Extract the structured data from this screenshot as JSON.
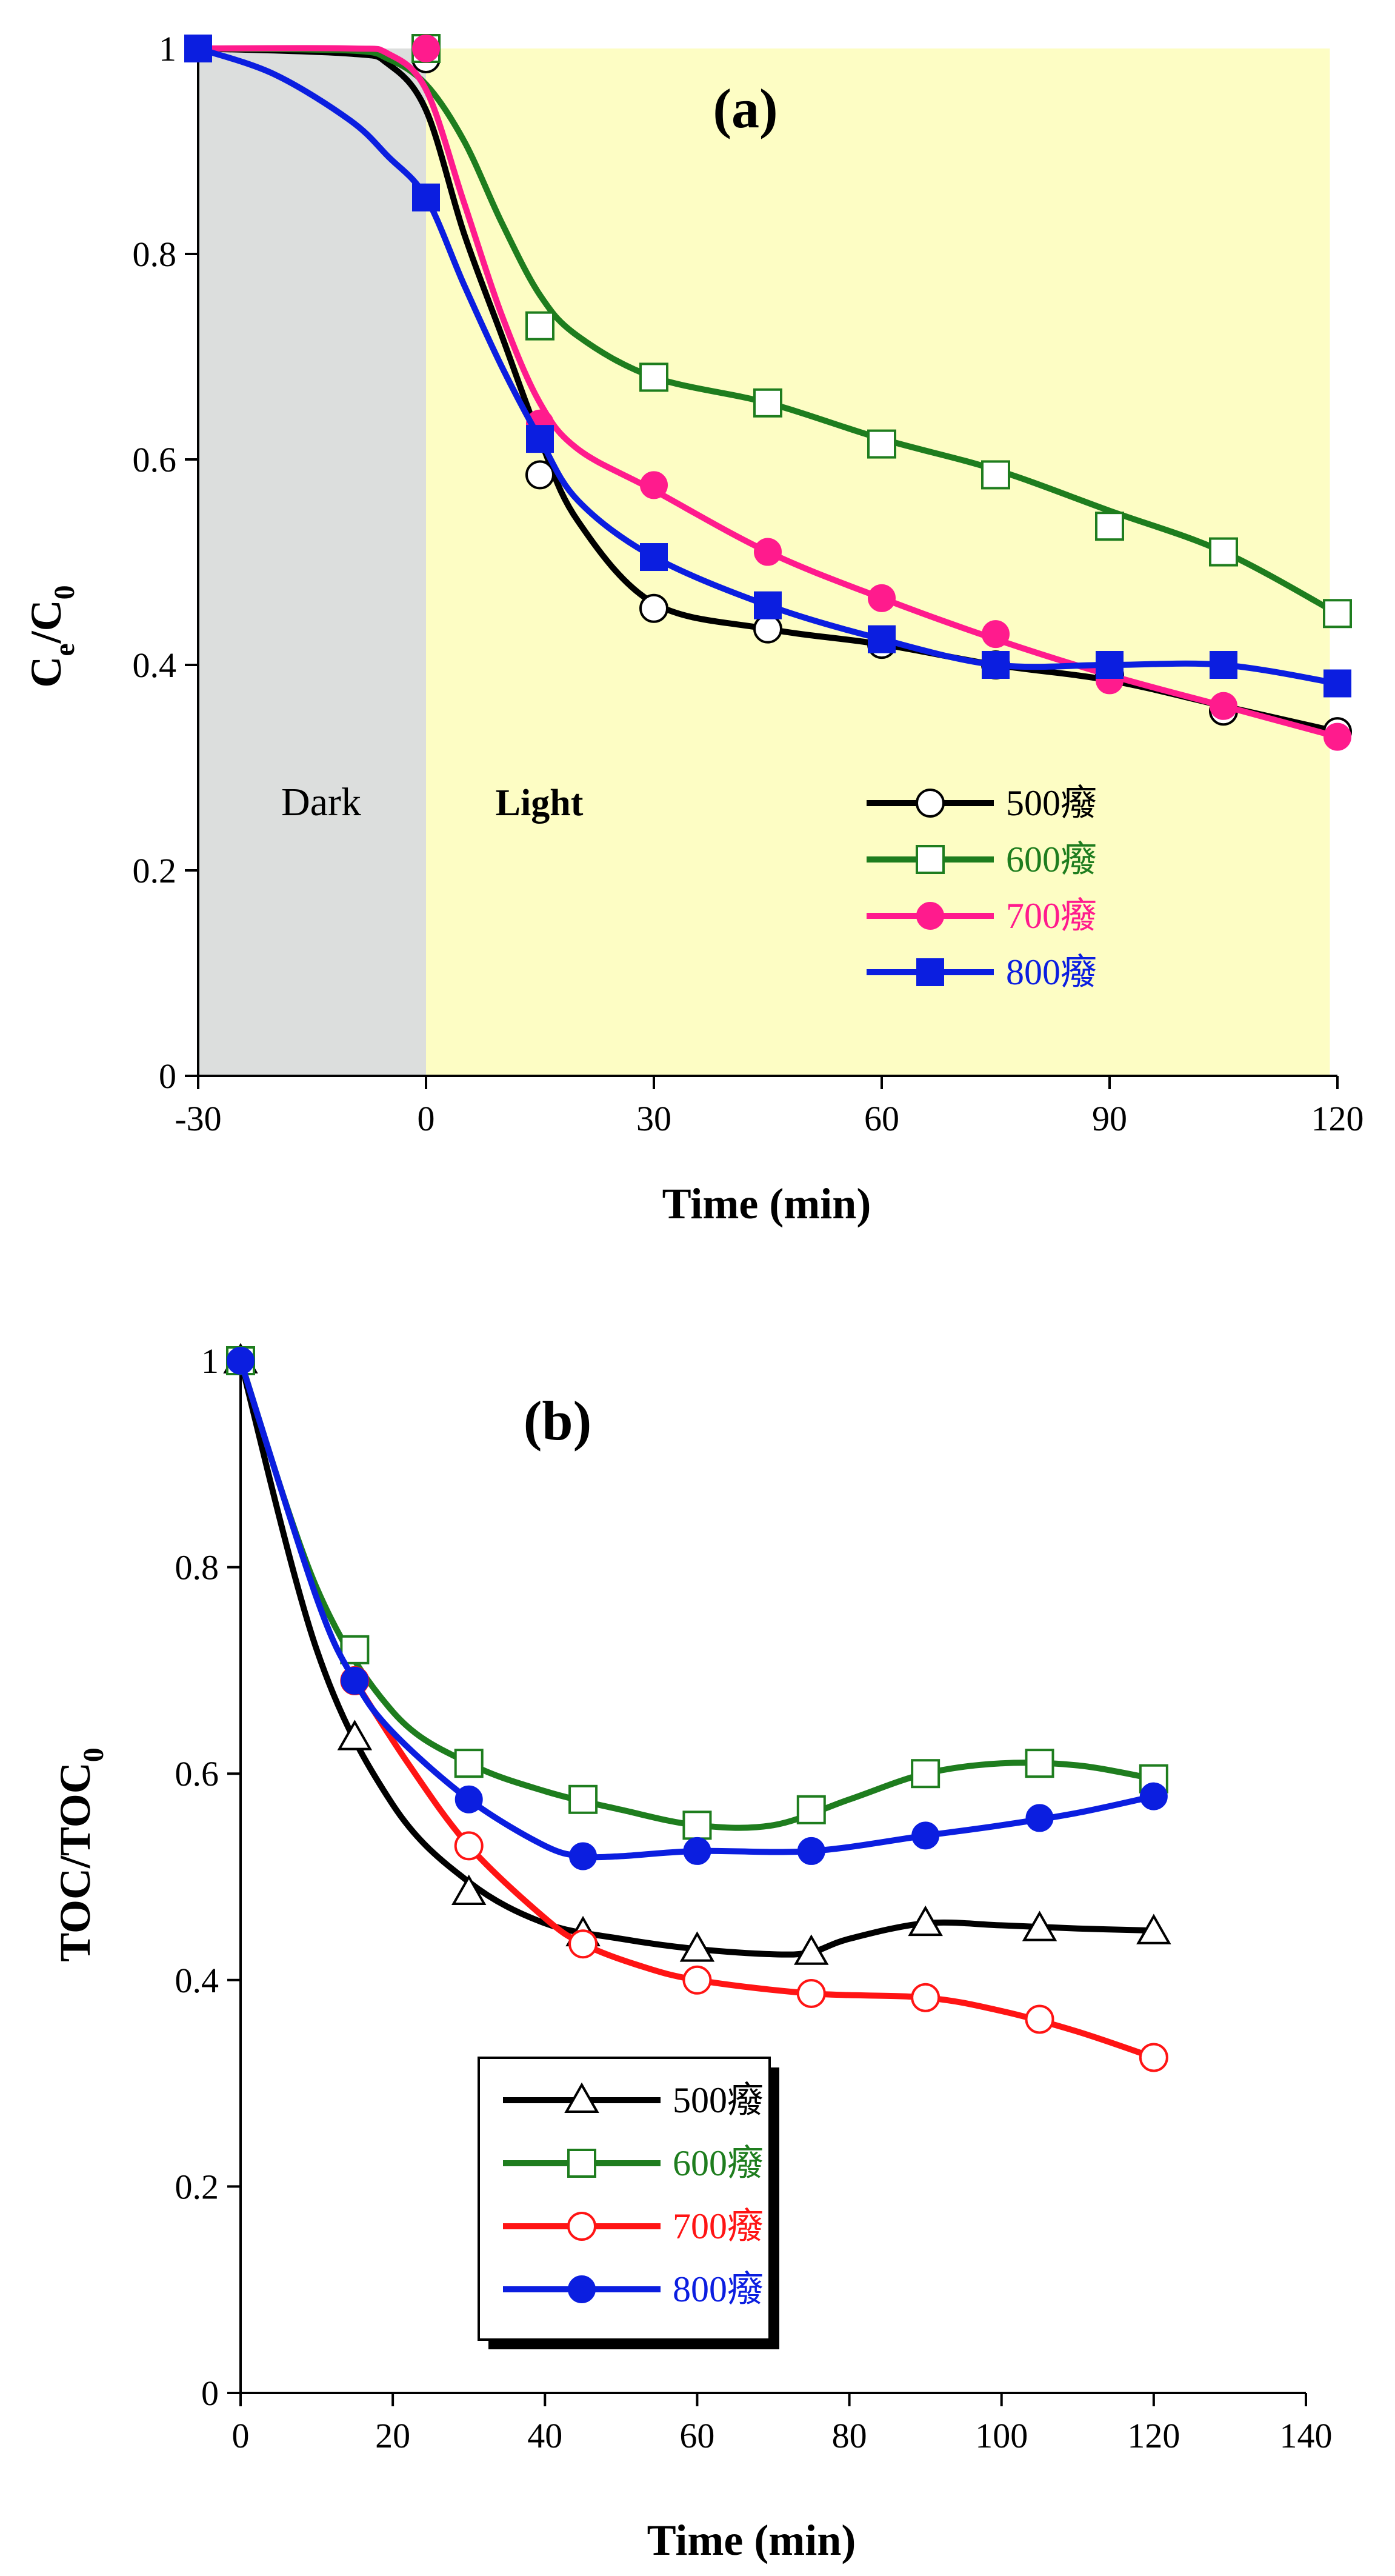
{
  "chart_data": [
    {
      "type": "line",
      "panel_label": "(a)",
      "xlabel": "Time (min)",
      "ylabel": {
        "base": "C",
        "sub1": "e",
        "mid": "/C",
        "sub2": "0"
      },
      "xlim": [
        -30,
        120
      ],
      "ylim": [
        0,
        1
      ],
      "xticks": [
        -30,
        0,
        30,
        60,
        90,
        120
      ],
      "yticks": [
        0,
        0.2,
        0.4,
        0.6,
        0.8,
        1
      ],
      "regions": [
        {
          "label": "Dark",
          "from": -30,
          "to": 0,
          "color": "#dcdedd"
        },
        {
          "label": "Light",
          "from": 0,
          "to": 119,
          "color": "#fdfdc4"
        }
      ],
      "legend_position": "lower-right",
      "series": [
        {
          "name": "500癈",
          "color": "#000000",
          "marker": "circle-open",
          "x": [
            0,
            15,
            30,
            45,
            60,
            75,
            90,
            105,
            120
          ],
          "y": [
            0.99,
            0.585,
            0.455,
            0.435,
            0.42,
            0.4,
            0.39,
            0.355,
            0.335
          ],
          "curve_x": [
            -30,
            -10,
            -5,
            0,
            5,
            10,
            15,
            20,
            30,
            45,
            60,
            75,
            90,
            105,
            120
          ],
          "curve_y": [
            1,
            0.995,
            0.985,
            0.94,
            0.82,
            0.72,
            0.62,
            0.54,
            0.46,
            0.435,
            0.42,
            0.4,
            0.385,
            0.36,
            0.335
          ]
        },
        {
          "name": "600癈",
          "color": "#1e7d1e",
          "marker": "square-open",
          "x": [
            0,
            15,
            30,
            45,
            60,
            75,
            90,
            105,
            120
          ],
          "y": [
            1,
            0.73,
            0.68,
            0.655,
            0.615,
            0.585,
            0.535,
            0.51,
            0.45
          ],
          "curve_x": [
            -30,
            -10,
            -5,
            0,
            5,
            10,
            15,
            20,
            30,
            45,
            60,
            75,
            90,
            105,
            120
          ],
          "curve_y": [
            1,
            0.998,
            0.99,
            0.965,
            0.91,
            0.83,
            0.76,
            0.72,
            0.68,
            0.655,
            0.62,
            0.59,
            0.55,
            0.51,
            0.45
          ]
        },
        {
          "name": "700癈",
          "color": "#ff1b8d",
          "marker": "circle-filled",
          "x": [
            0,
            15,
            30,
            45,
            60,
            75,
            90,
            105,
            120
          ],
          "y": [
            1,
            0.635,
            0.575,
            0.51,
            0.465,
            0.43,
            0.385,
            0.36,
            0.33
          ],
          "curve_x": [
            -30,
            -10,
            -5,
            0,
            5,
            10,
            15,
            20,
            30,
            45,
            60,
            75,
            90,
            105,
            120
          ],
          "curve_y": [
            1,
            1,
            0.995,
            0.96,
            0.85,
            0.74,
            0.655,
            0.61,
            0.57,
            0.51,
            0.465,
            0.425,
            0.39,
            0.36,
            0.33
          ]
        },
        {
          "name": "800癈",
          "color": "#0b1ee0",
          "marker": "square-filled",
          "x": [
            -30,
            0,
            15,
            30,
            45,
            60,
            75,
            90,
            105,
            120
          ],
          "y": [
            1,
            0.855,
            0.62,
            0.505,
            0.458,
            0.425,
            0.4,
            0.4,
            0.4,
            0.382
          ],
          "curve_x": [
            -30,
            -20,
            -10,
            -5,
            0,
            5,
            10,
            15,
            20,
            30,
            45,
            60,
            75,
            90,
            105,
            120
          ],
          "curve_y": [
            1,
            0.975,
            0.93,
            0.895,
            0.855,
            0.77,
            0.69,
            0.62,
            0.56,
            0.505,
            0.458,
            0.425,
            0.4,
            0.4,
            0.4,
            0.382
          ]
        }
      ]
    },
    {
      "type": "line",
      "panel_label": "(b)",
      "xlabel": "Time (min)",
      "ylabel": {
        "base": "TOC/TOC",
        "sub2": "0"
      },
      "xlim": [
        0,
        140
      ],
      "ylim": [
        0,
        1
      ],
      "xticks": [
        0,
        20,
        40,
        60,
        80,
        100,
        120,
        140
      ],
      "yticks": [
        0,
        0.2,
        0.4,
        0.6,
        0.8,
        1
      ],
      "legend_position": "lower-left",
      "series": [
        {
          "name": "500癈",
          "color": "#000000",
          "marker": "triangle-open",
          "x": [
            0,
            15,
            30,
            45,
            60,
            75,
            90,
            105,
            120
          ],
          "y": [
            1,
            0.635,
            0.485,
            0.445,
            0.43,
            0.427,
            0.455,
            0.45,
            0.447
          ],
          "curve_x": [
            0,
            10,
            20,
            30,
            40,
            50,
            60,
            70,
            75,
            80,
            90,
            100,
            110,
            120
          ],
          "curve_y": [
            1,
            0.72,
            0.57,
            0.495,
            0.455,
            0.44,
            0.43,
            0.425,
            0.427,
            0.44,
            0.455,
            0.453,
            0.45,
            0.448
          ]
        },
        {
          "name": "600癈",
          "color": "#1e7d1e",
          "marker": "square-open",
          "x": [
            0,
            15,
            30,
            45,
            60,
            75,
            90,
            105,
            120
          ],
          "y": [
            1,
            0.72,
            0.61,
            0.575,
            0.55,
            0.565,
            0.6,
            0.61,
            0.595
          ],
          "curve_x": [
            0,
            10,
            20,
            30,
            40,
            50,
            60,
            70,
            80,
            90,
            100,
            110,
            120
          ],
          "curve_y": [
            1,
            0.78,
            0.66,
            0.61,
            0.583,
            0.565,
            0.55,
            0.55,
            0.575,
            0.6,
            0.61,
            0.608,
            0.595
          ]
        },
        {
          "name": "700癈",
          "color": "#ff1414",
          "marker": "circle-open",
          "x": [
            15,
            30,
            45,
            60,
            75,
            90,
            105,
            120
          ],
          "y": [
            0.69,
            0.53,
            0.435,
            0.4,
            0.387,
            0.383,
            0.362,
            0.325
          ],
          "curve_x": [
            15,
            22,
            30,
            40,
            45,
            52,
            60,
            75,
            90,
            100,
            110,
            120
          ],
          "curve_y": [
            0.69,
            0.61,
            0.53,
            0.46,
            0.435,
            0.415,
            0.4,
            0.387,
            0.383,
            0.37,
            0.35,
            0.325
          ]
        },
        {
          "name": "800癈",
          "color": "#0b1ee0",
          "marker": "circle-filled",
          "x": [
            0,
            15,
            30,
            45,
            60,
            75,
            90,
            105,
            120
          ],
          "y": [
            1,
            0.69,
            0.575,
            0.52,
            0.525,
            0.525,
            0.54,
            0.557,
            0.578
          ],
          "curve_x": [
            0,
            10,
            15,
            20,
            30,
            40,
            45,
            50,
            60,
            75,
            90,
            100,
            110,
            120
          ],
          "curve_y": [
            1,
            0.77,
            0.69,
            0.64,
            0.575,
            0.53,
            0.52,
            0.52,
            0.525,
            0.525,
            0.54,
            0.55,
            0.562,
            0.578
          ]
        }
      ]
    }
  ]
}
